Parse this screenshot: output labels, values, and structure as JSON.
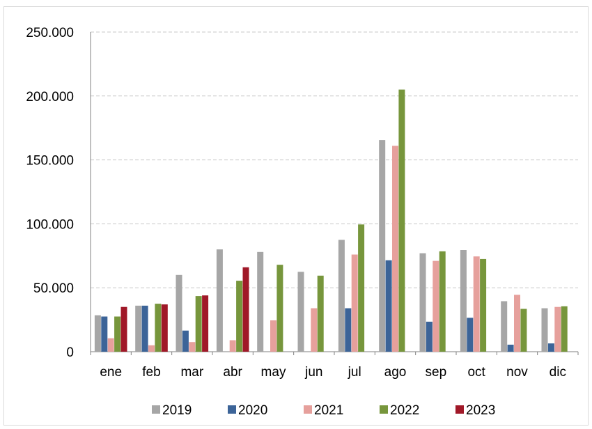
{
  "chart_data": {
    "type": "bar",
    "title": "",
    "xlabel": "",
    "ylabel": "",
    "categories": [
      "ene",
      "feb",
      "mar",
      "abr",
      "may",
      "jun",
      "jul",
      "ago",
      "sep",
      "oct",
      "nov",
      "dic"
    ],
    "ylim": [
      0,
      250000
    ],
    "yticks": [
      0,
      50000,
      100000,
      150000,
      200000,
      250000
    ],
    "ytick_labels": [
      "0",
      "50.000",
      "100.000",
      "150.000",
      "200.000",
      "250.000"
    ],
    "grid": true,
    "legend_position": "bottom",
    "series": [
      {
        "name": "2019",
        "color": "#a6a6a6",
        "values": [
          28500,
          36000,
          60000,
          80000,
          78000,
          62500,
          87500,
          165500,
          77000,
          79500,
          39500,
          34000
        ]
      },
      {
        "name": "2020",
        "color": "#3c6498",
        "values": [
          27500,
          36000,
          16500,
          null,
          null,
          null,
          34000,
          71500,
          23500,
          26500,
          5500,
          6500
        ]
      },
      {
        "name": "2021",
        "color": "#e6a09c",
        "values": [
          10500,
          5000,
          7500,
          9000,
          24500,
          34000,
          76000,
          161000,
          71000,
          74500,
          44500,
          35000
        ]
      },
      {
        "name": "2022",
        "color": "#77963c",
        "values": [
          27500,
          37500,
          43500,
          55500,
          68000,
          59500,
          99500,
          205000,
          78500,
          72500,
          33500,
          35500
        ]
      },
      {
        "name": "2023",
        "color": "#a01828",
        "values": [
          35000,
          37000,
          44000,
          66000,
          null,
          null,
          null,
          null,
          null,
          null,
          null,
          null
        ]
      }
    ]
  }
}
